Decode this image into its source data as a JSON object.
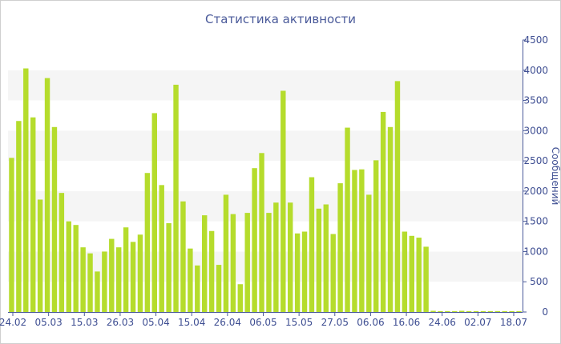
{
  "chart_data": {
    "type": "bar",
    "title": "Статистика активности",
    "ylabel": "Сообщений",
    "ylim": [
      0,
      4500
    ],
    "y_ticks": [
      0,
      500,
      1000,
      1500,
      2000,
      2500,
      3000,
      3500,
      4000,
      4500
    ],
    "x_tick_labels": [
      "24.02",
      "05.03",
      "15.03",
      "26.03",
      "05.04",
      "15.04",
      "26.04",
      "06.05",
      "15.05",
      "27.05",
      "06.06",
      "16.06",
      "24.06",
      "02.07",
      "18.07"
    ],
    "grid": "horizontal alternating bands",
    "bar_color": "#b5dc2c",
    "axis_color": "#4a5a9a",
    "values": [
      2550,
      3160,
      4030,
      3220,
      1860,
      3870,
      3060,
      1970,
      1500,
      1440,
      1070,
      970,
      670,
      1000,
      1210,
      1070,
      1400,
      1160,
      1280,
      2300,
      3290,
      2100,
      1470,
      3760,
      1830,
      1050,
      770,
      1600,
      1340,
      780,
      1940,
      1620,
      460,
      1640,
      2380,
      2630,
      1640,
      1810,
      3660,
      1810,
      1300,
      1330,
      2230,
      1710,
      1780,
      1290,
      2130,
      3050,
      2350,
      2360,
      1940,
      2510,
      3310,
      3060,
      3820,
      1330,
      1260,
      1230,
      1080,
      20,
      15,
      15,
      15,
      20,
      15,
      15,
      15,
      15,
      15,
      15,
      15,
      15
    ]
  }
}
